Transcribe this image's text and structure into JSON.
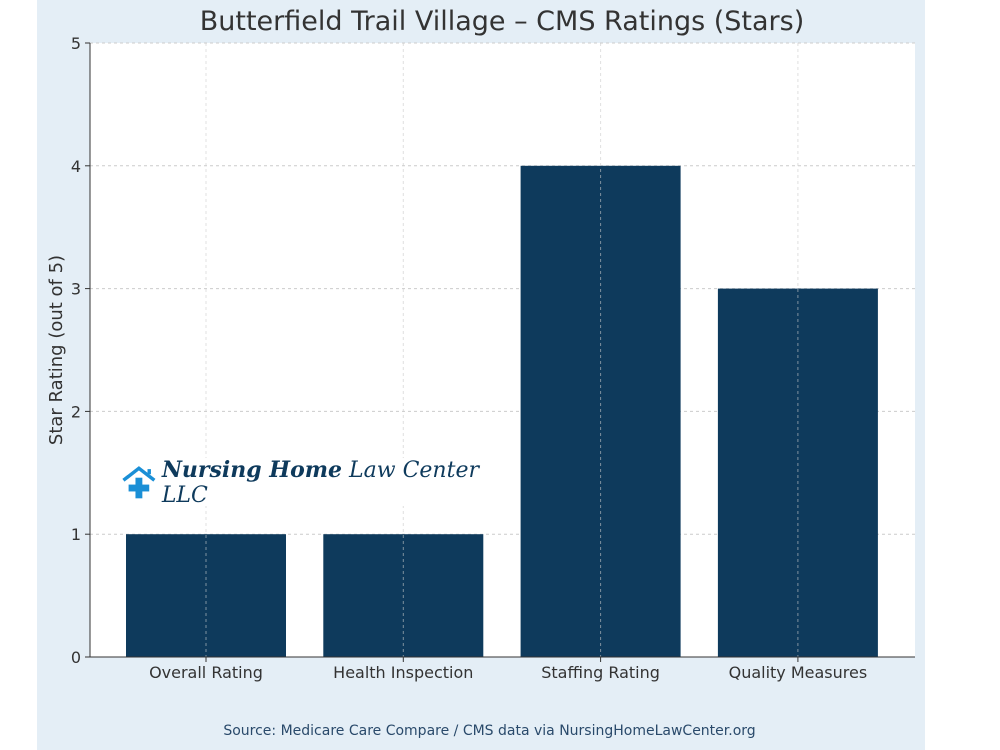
{
  "chart_data": {
    "type": "bar",
    "title": "Butterfield Trail Village – CMS Ratings (Stars)",
    "categories": [
      "Overall Rating",
      "Health Inspection",
      "Staffing Rating",
      "Quality Measures"
    ],
    "values": [
      1,
      1,
      4,
      3
    ],
    "xlabel": "",
    "ylabel": "Star Rating (out of 5)",
    "ylim": [
      0,
      5
    ],
    "yticks": [
      0,
      1,
      2,
      3,
      4,
      5
    ],
    "grid": true,
    "bar_color": "#0e3a5c"
  },
  "source": "Source: Medicare Care Compare / CMS data via NursingHomeLawCenter.org",
  "logo": {
    "bold": "Nursing Home",
    "rest": "Law Center LLC",
    "icon": "house-cross-icon",
    "color": "#1a8fd6"
  }
}
